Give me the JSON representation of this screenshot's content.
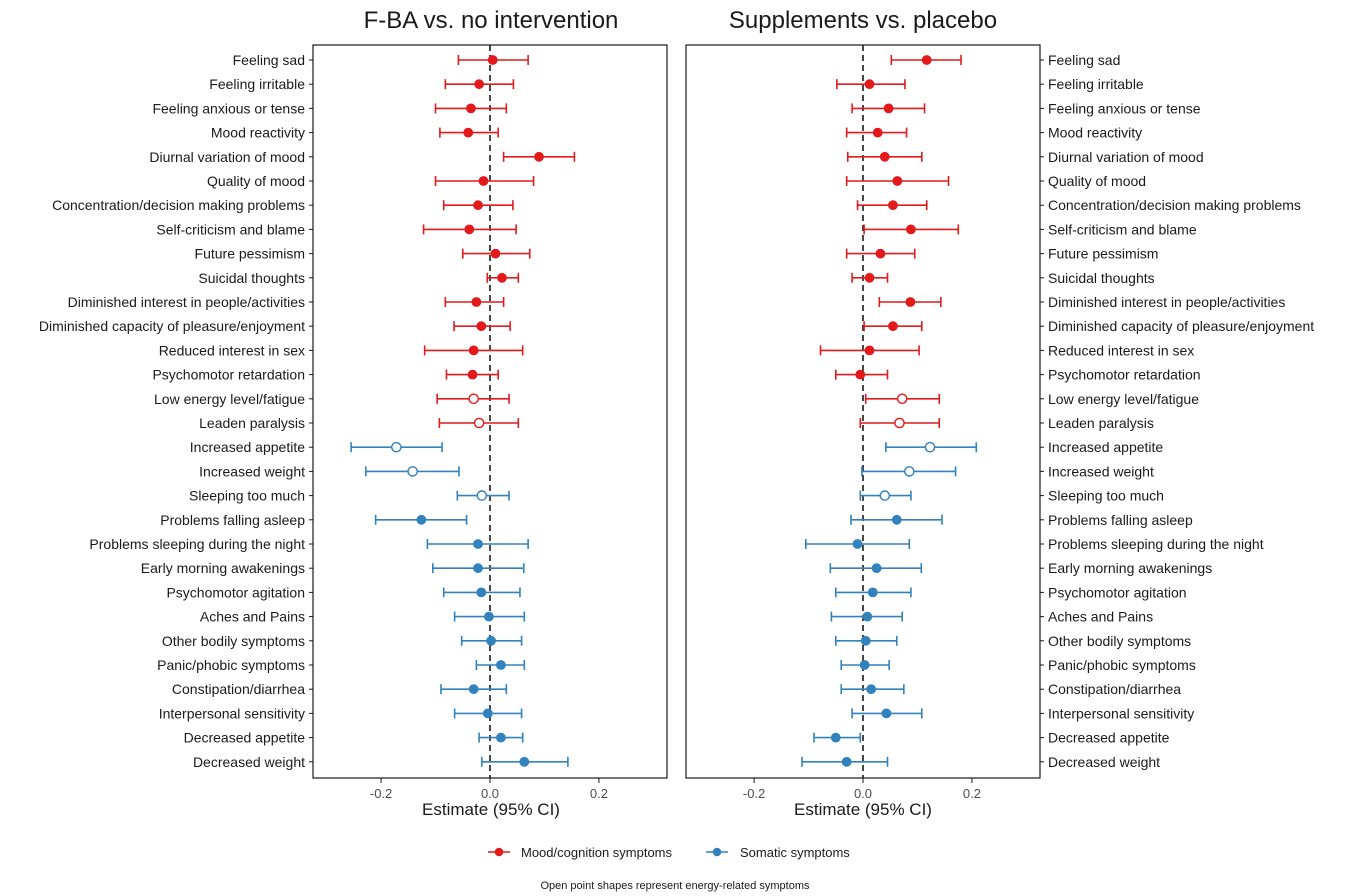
{
  "chart_data": {
    "type": "forest",
    "x_axis_label": "Estimate (95% CI)",
    "xlim": [
      -0.325,
      0.325
    ],
    "x_ticks": [
      -0.2,
      0.0,
      0.2
    ],
    "x_tick_labels": [
      "-0.2",
      "0.0",
      "0.2"
    ],
    "grid": false,
    "reference_line": 0,
    "categories": [
      "Feeling sad",
      "Feeling irritable",
      "Feeling anxious or tense",
      "Mood reactivity",
      "Diurnal variation of mood",
      "Quality of mood",
      "Concentration/decision making problems",
      "Self-criticism and blame",
      "Future pessimism",
      "Suicidal thoughts",
      "Diminished interest in people/activities",
      "Diminished capacity of pleasure/enjoyment",
      "Reduced interest in sex",
      "Psychomotor retardation",
      "Low energy level/fatigue",
      "Leaden paralysis",
      "Increased appetite",
      "Increased weight",
      "Sleeping too much",
      "Problems falling asleep",
      "Problems sleeping during the night",
      "Early morning awakenings",
      "Psychomotor agitation",
      "Aches and Pains",
      "Other bodily symptoms",
      "Panic/phobic symptoms",
      "Constipation/diarrhea",
      "Interpersonal sensitivity",
      "Decreased appetite",
      "Decreased weight"
    ],
    "groups": [
      "mood",
      "mood",
      "mood",
      "mood",
      "mood",
      "mood",
      "mood",
      "mood",
      "mood",
      "mood",
      "mood",
      "mood",
      "mood",
      "mood",
      "mood",
      "mood",
      "somatic",
      "somatic",
      "somatic",
      "somatic",
      "somatic",
      "somatic",
      "somatic",
      "somatic",
      "somatic",
      "somatic",
      "somatic",
      "somatic",
      "somatic",
      "somatic"
    ],
    "energy_related": [
      false,
      false,
      false,
      false,
      false,
      false,
      false,
      false,
      false,
      false,
      false,
      false,
      false,
      false,
      true,
      true,
      true,
      true,
      true,
      false,
      false,
      false,
      false,
      false,
      false,
      false,
      false,
      false,
      false,
      false
    ],
    "panels": [
      {
        "title": "F-BA vs. no intervention",
        "label_side": "left",
        "estimate": [
          0.005,
          -0.02,
          -0.035,
          -0.04,
          0.09,
          -0.012,
          -0.022,
          -0.038,
          0.01,
          0.022,
          -0.025,
          -0.016,
          -0.03,
          -0.032,
          -0.03,
          -0.02,
          -0.172,
          -0.142,
          -0.015,
          -0.126,
          -0.022,
          -0.022,
          -0.016,
          -0.002,
          0.002,
          0.02,
          -0.03,
          -0.004,
          0.02,
          0.063
        ],
        "lower": [
          -0.058,
          -0.082,
          -0.1,
          -0.092,
          0.025,
          -0.1,
          -0.085,
          -0.122,
          -0.05,
          -0.005,
          -0.082,
          -0.066,
          -0.12,
          -0.08,
          -0.097,
          -0.093,
          -0.255,
          -0.228,
          -0.06,
          -0.21,
          -0.115,
          -0.105,
          -0.085,
          -0.065,
          -0.052,
          -0.025,
          -0.09,
          -0.065,
          -0.02,
          -0.015
        ],
        "upper": [
          0.07,
          0.043,
          0.03,
          0.015,
          0.155,
          0.08,
          0.042,
          0.048,
          0.073,
          0.052,
          0.025,
          0.037,
          0.06,
          0.015,
          0.035,
          0.052,
          -0.088,
          -0.057,
          0.035,
          -0.043,
          0.07,
          0.062,
          0.055,
          0.063,
          0.058,
          0.063,
          0.03,
          0.058,
          0.06,
          0.143
        ]
      },
      {
        "title": "Supplements vs. placebo",
        "label_side": "right",
        "estimate": [
          0.117,
          0.012,
          0.047,
          0.027,
          0.04,
          0.063,
          0.055,
          0.088,
          0.032,
          0.012,
          0.087,
          0.055,
          0.012,
          -0.005,
          0.072,
          0.067,
          0.123,
          0.085,
          0.04,
          0.062,
          -0.01,
          0.025,
          0.018,
          0.008,
          0.005,
          0.003,
          0.015,
          0.043,
          -0.05,
          -0.03
        ],
        "lower": [
          0.052,
          -0.048,
          -0.02,
          -0.03,
          -0.028,
          -0.03,
          -0.01,
          0.002,
          -0.03,
          -0.02,
          0.03,
          0.002,
          -0.078,
          -0.05,
          0.005,
          -0.005,
          0.042,
          -0.002,
          -0.005,
          -0.022,
          -0.105,
          -0.06,
          -0.05,
          -0.058,
          -0.05,
          -0.04,
          -0.04,
          -0.02,
          -0.09,
          -0.112
        ],
        "upper": [
          0.18,
          0.077,
          0.113,
          0.08,
          0.108,
          0.157,
          0.117,
          0.175,
          0.095,
          0.045,
          0.143,
          0.108,
          0.103,
          0.045,
          0.14,
          0.14,
          0.208,
          0.17,
          0.088,
          0.145,
          0.085,
          0.107,
          0.088,
          0.072,
          0.062,
          0.048,
          0.075,
          0.108,
          -0.005,
          0.045
        ]
      }
    ],
    "legend": {
      "placement": "bottom",
      "entries": [
        {
          "label": "Mood/cognition symptoms",
          "color": "#e31a1c"
        },
        {
          "label": "Somatic symptoms",
          "color": "#3182bd"
        }
      ]
    },
    "footnote": "Open point shapes represent energy-related symptoms",
    "colors": {
      "mood": "#e31a1c",
      "somatic": "#3182bd"
    }
  }
}
